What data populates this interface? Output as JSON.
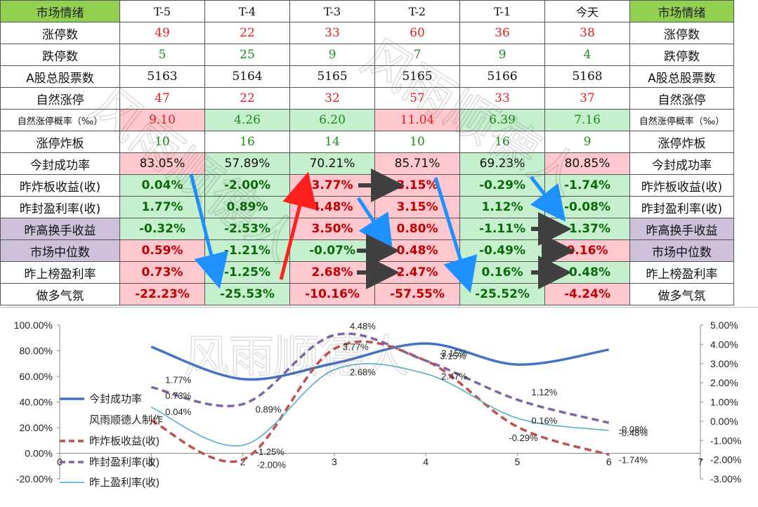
{
  "table": {
    "header": [
      "市场情绪",
      "T-5",
      "T-4",
      "T-3",
      "T-2",
      "T-1",
      "今天",
      "市场情绪"
    ],
    "rows": [
      {
        "label": "涨停数",
        "values": [
          "49",
          "22",
          "33",
          "60",
          "36",
          "38"
        ]
      },
      {
        "label": "跌停数",
        "values": [
          "5",
          "25",
          "9",
          "7",
          "9",
          "4"
        ]
      },
      {
        "label": "A股总股票数",
        "values": [
          "5163",
          "5164",
          "5165",
          "5165",
          "5166",
          "5168"
        ]
      },
      {
        "label": "自然涨停",
        "values": [
          "47",
          "22",
          "32",
          "57",
          "33",
          "37"
        ]
      },
      {
        "label": "自然涨停概率（‰）",
        "values": [
          "9.10",
          "4.26",
          "6.20",
          "11.04",
          "6.39",
          "7.16"
        ]
      },
      {
        "label": "涨停炸板",
        "values": [
          "10",
          "16",
          "14",
          "10",
          "16",
          "9"
        ]
      },
      {
        "label": "今封成功率",
        "values": [
          "83.05%",
          "57.89%",
          "70.21%",
          "85.71%",
          "69.23%",
          "80.85%"
        ]
      },
      {
        "label": "昨炸板收益(收)",
        "values": [
          "0.04%",
          "-2.00%",
          "3.77%",
          "3.15%",
          "-0.29%",
          "-1.74%"
        ]
      },
      {
        "label": "昨封盈利率(收)",
        "values": [
          "1.77%",
          "0.89%",
          "4.48%",
          "3.15%",
          "1.12%",
          "-0.08%"
        ]
      },
      {
        "label": "昨高换手收益",
        "values": [
          "-0.32%",
          "-2.53%",
          "3.50%",
          "0.80%",
          "-1.11%",
          "-1.37%"
        ]
      },
      {
        "label": "市场中位数",
        "values": [
          "0.59%",
          "-1.21%",
          "-0.07%",
          "0.48%",
          "-0.49%",
          "0.16%"
        ]
      },
      {
        "label": "昨上榜盈利率",
        "values": [
          "0.73%",
          "-1.25%",
          "2.68%",
          "2.47%",
          "0.16%",
          "-0.48%"
        ]
      },
      {
        "label": "做多气氛",
        "values": [
          "-22.23%",
          "-25.53%",
          "-10.16%",
          "-57.55%",
          "-25.52%",
          "-4.24%"
        ]
      }
    ]
  },
  "watermark": "风雨顺德人",
  "chart_data": {
    "type": "line",
    "x": [
      1,
      2,
      3,
      4,
      5,
      6
    ],
    "xlim": [
      0,
      7
    ],
    "xticks": [
      "0",
      "1",
      "2",
      "3",
      "4",
      "5",
      "6",
      "7"
    ],
    "ylim_left": [
      -20,
      100
    ],
    "ylim_right": [
      -3,
      5
    ],
    "yticks_left": [
      "100.00%",
      "80.00%",
      "60.00%",
      "40.00%",
      "20.00%",
      "0.00%",
      "-20.00%"
    ],
    "yticks_right": [
      "5.00%",
      "4.00%",
      "3.00%",
      "2.00%",
      "1.00%",
      "0.00%",
      "-1.00%",
      "-2.00%",
      "-3.00%"
    ],
    "legend_position": "left",
    "series": [
      {
        "name": "今封成功率",
        "axis": "left",
        "color": "#4472c4",
        "style": "solid-thick",
        "values": [
          83.05,
          57.89,
          70.21,
          85.71,
          69.23,
          80.85
        ],
        "labels": []
      },
      {
        "name": "昨炸板收益(收)",
        "axis": "right",
        "color": "#c0504d",
        "style": "dashed",
        "values": [
          0.04,
          -2.0,
          3.77,
          3.15,
          -0.29,
          -1.74
        ],
        "labels": [
          "0.04%",
          "-2.00%",
          "3.77%",
          "3.15%",
          "-0.29%",
          "-1.74%"
        ]
      },
      {
        "name": "昨封盈利率(收)",
        "axis": "right",
        "color": "#8064a2",
        "style": "dashed",
        "values": [
          1.77,
          0.89,
          4.48,
          3.15,
          1.12,
          -0.08
        ],
        "labels": [
          "1.77%",
          "0.89%",
          "4.48%",
          "3.15%",
          "1.12%",
          "-0.08%"
        ]
      },
      {
        "name": "昨上盈利率(收)",
        "axis": "right",
        "color": "#4bacc6",
        "style": "solid-thin",
        "values": [
          0.73,
          -1.25,
          2.68,
          2.47,
          0.16,
          -0.48
        ],
        "labels": [
          "0.73%",
          "-1.25%",
          "2.68%",
          "2.47%",
          "0.16%",
          "-0.48%"
        ]
      }
    ],
    "legend_extra": "风雨顺德人制作"
  }
}
